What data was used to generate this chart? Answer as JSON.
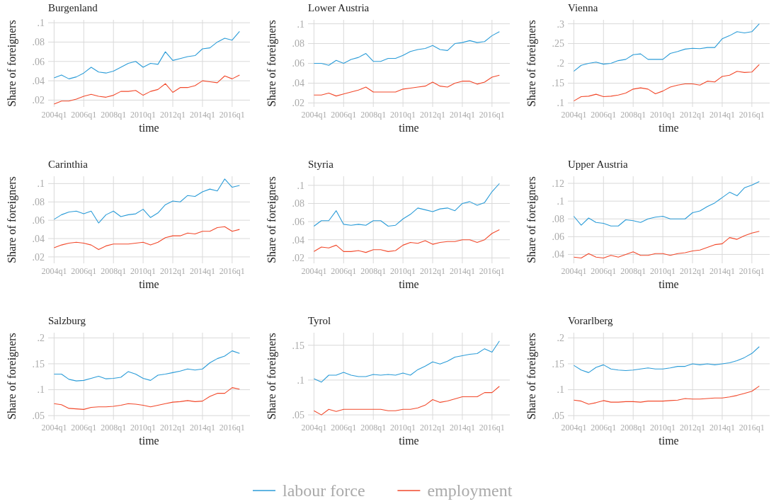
{
  "chart_data": [
    {
      "type": "line",
      "title": "Burgenland",
      "xlabel": "time",
      "ylabel": "Share of foreigners",
      "grid": true,
      "legend": "bottom",
      "ylim": [
        0.013,
        0.103
      ],
      "categories": [
        "2004q1",
        null,
        null,
        null,
        "2006q1",
        null,
        null,
        null,
        "2008q1",
        null,
        null,
        null,
        "2010q1",
        null,
        null,
        null,
        "2012q1",
        null,
        null,
        null,
        "2014q1",
        null,
        null,
        null,
        "2016q1",
        null
      ],
      "yticks": [
        {
          "value": 0.02,
          "label": ".02"
        },
        {
          "value": 0.04,
          "label": ".04"
        },
        {
          "value": 0.06,
          "label": ".06"
        },
        {
          "value": 0.08,
          "label": ".08"
        },
        {
          "value": 0.1,
          "label": ".1"
        }
      ],
      "series": [
        {
          "name": "labour force",
          "color": "#2b9cd8",
          "values": [
            0.043,
            0.046,
            0.042,
            0.044,
            0.048,
            0.054,
            0.049,
            0.048,
            0.05,
            0.054,
            0.058,
            0.06,
            0.054,
            0.058,
            0.057,
            0.07,
            0.061,
            0.063,
            0.065,
            0.066,
            0.073,
            0.074,
            0.08,
            0.084,
            0.082,
            0.091
          ]
        },
        {
          "name": "employment",
          "color": "#f2492b",
          "values": [
            0.016,
            0.019,
            0.019,
            0.021,
            0.024,
            0.026,
            0.024,
            0.023,
            0.025,
            0.029,
            0.029,
            0.03,
            0.025,
            0.029,
            0.031,
            0.037,
            0.028,
            0.033,
            0.033,
            0.035,
            0.04,
            0.039,
            0.038,
            0.045,
            0.042,
            0.046
          ]
        }
      ]
    },
    {
      "type": "line",
      "title": "Lower Austria",
      "xlabel": "time",
      "ylabel": "Share of foreigners",
      "grid": true,
      "legend": "bottom",
      "ylim": [
        0.016,
        0.104
      ],
      "categories": [
        "2004q1",
        null,
        null,
        null,
        "2006q1",
        null,
        null,
        null,
        "2008q1",
        null,
        null,
        null,
        "2010q1",
        null,
        null,
        null,
        "2012q1",
        null,
        null,
        null,
        "2014q1",
        null,
        null,
        null,
        "2016q1",
        null
      ],
      "yticks": [
        {
          "value": 0.02,
          "label": ".02"
        },
        {
          "value": 0.04,
          "label": ".04"
        },
        {
          "value": 0.06,
          "label": ".06"
        },
        {
          "value": 0.08,
          "label": ".08"
        },
        {
          "value": 0.1,
          "label": ".1"
        }
      ],
      "series": [
        {
          "color": "#2b9cd8",
          "values": [
            0.06,
            0.06,
            0.058,
            0.063,
            0.06,
            0.064,
            0.066,
            0.07,
            0.062,
            0.062,
            0.065,
            0.065,
            0.068,
            0.072,
            0.074,
            0.075,
            0.078,
            0.074,
            0.073,
            0.08,
            0.081,
            0.083,
            0.081,
            0.082,
            0.088,
            0.092
          ]
        },
        {
          "color": "#f2492b",
          "values": [
            0.028,
            0.028,
            0.03,
            0.027,
            0.029,
            0.031,
            0.033,
            0.036,
            0.031,
            0.031,
            0.031,
            0.031,
            0.034,
            0.035,
            0.036,
            0.037,
            0.041,
            0.037,
            0.036,
            0.04,
            0.042,
            0.042,
            0.039,
            0.041,
            0.046,
            0.048
          ]
        }
      ]
    },
    {
      "type": "line",
      "title": "Vienna",
      "xlabel": "time",
      "ylabel": "Share of foreigners",
      "grid": true,
      "legend": "bottom",
      "ylim": [
        0.09,
        0.31
      ],
      "categories": [
        "2004q1",
        null,
        null,
        null,
        "2006q1",
        null,
        null,
        null,
        "2008q1",
        null,
        null,
        null,
        "2010q1",
        null,
        null,
        null,
        "2012q1",
        null,
        null,
        null,
        "2014q1",
        null,
        null,
        null,
        "2016q1",
        null
      ],
      "yticks": [
        {
          "value": 0.1,
          "label": ".1"
        },
        {
          "value": 0.15,
          "label": ".15"
        },
        {
          "value": 0.2,
          "label": ".2"
        },
        {
          "value": 0.25,
          "label": ".25"
        },
        {
          "value": 0.3,
          "label": ".3"
        }
      ],
      "series": [
        {
          "color": "#2b9cd8",
          "values": [
            0.18,
            0.195,
            0.2,
            0.203,
            0.198,
            0.2,
            0.207,
            0.21,
            0.222,
            0.224,
            0.21,
            0.21,
            0.21,
            0.225,
            0.23,
            0.236,
            0.238,
            0.237,
            0.24,
            0.24,
            0.262,
            0.27,
            0.28,
            0.277,
            0.28,
            0.3
          ]
        },
        {
          "color": "#f2492b",
          "values": [
            0.105,
            0.116,
            0.117,
            0.122,
            0.116,
            0.117,
            0.12,
            0.125,
            0.135,
            0.138,
            0.135,
            0.123,
            0.13,
            0.14,
            0.145,
            0.148,
            0.148,
            0.145,
            0.155,
            0.153,
            0.167,
            0.17,
            0.18,
            0.177,
            0.178,
            0.197
          ]
        }
      ]
    },
    {
      "type": "line",
      "title": "Carinthia",
      "xlabel": "time",
      "ylabel": "Share of foreigners",
      "grid": true,
      "legend": "bottom",
      "ylim": [
        0.013,
        0.108
      ],
      "categories": [
        "2004q1",
        null,
        null,
        null,
        "2006q1",
        null,
        null,
        null,
        "2008q1",
        null,
        null,
        null,
        "2010q1",
        null,
        null,
        null,
        "2012q1",
        null,
        null,
        null,
        "2014q1",
        null,
        null,
        null,
        "2016q1",
        null
      ],
      "yticks": [
        {
          "value": 0.02,
          "label": ".02"
        },
        {
          "value": 0.04,
          "label": ".04"
        },
        {
          "value": 0.06,
          "label": ".06"
        },
        {
          "value": 0.08,
          "label": ".08"
        },
        {
          "value": 0.1,
          "label": ".1"
        }
      ],
      "series": [
        {
          "color": "#2b9cd8",
          "values": [
            0.061,
            0.066,
            0.069,
            0.07,
            0.067,
            0.07,
            0.057,
            0.066,
            0.07,
            0.064,
            0.066,
            0.067,
            0.072,
            0.063,
            0.068,
            0.077,
            0.081,
            0.08,
            0.087,
            0.086,
            0.091,
            0.094,
            0.092,
            0.105,
            0.096,
            0.098
          ]
        },
        {
          "color": "#f2492b",
          "values": [
            0.03,
            0.033,
            0.035,
            0.036,
            0.035,
            0.033,
            0.028,
            0.032,
            0.034,
            0.034,
            0.034,
            0.035,
            0.036,
            0.033,
            0.036,
            0.041,
            0.043,
            0.043,
            0.046,
            0.045,
            0.048,
            0.048,
            0.052,
            0.053,
            0.048,
            0.05
          ]
        }
      ]
    },
    {
      "type": "line",
      "title": "Styria",
      "xlabel": "time",
      "ylabel": "Share of foreigners",
      "grid": true,
      "legend": "bottom",
      "ylim": [
        0.014,
        0.11
      ],
      "categories": [
        "2004q1",
        null,
        null,
        null,
        "2006q1",
        null,
        null,
        null,
        "2008q1",
        null,
        null,
        null,
        "2010q1",
        null,
        null,
        null,
        "2012q1",
        null,
        null,
        null,
        "2014q1",
        null,
        null,
        null,
        "2016q1",
        null
      ],
      "yticks": [
        {
          "value": 0.02,
          "label": ".02"
        },
        {
          "value": 0.04,
          "label": ".04"
        },
        {
          "value": 0.06,
          "label": ".06"
        },
        {
          "value": 0.08,
          "label": ".08"
        },
        {
          "value": 0.1,
          "label": ".1"
        }
      ],
      "series": [
        {
          "color": "#2b9cd8",
          "values": [
            0.055,
            0.061,
            0.061,
            0.072,
            0.057,
            0.056,
            0.057,
            0.056,
            0.061,
            0.061,
            0.055,
            0.056,
            0.063,
            0.068,
            0.075,
            0.073,
            0.071,
            0.074,
            0.075,
            0.072,
            0.08,
            0.082,
            0.078,
            0.081,
            0.093,
            0.102
          ]
        },
        {
          "color": "#f2492b",
          "values": [
            0.027,
            0.032,
            0.031,
            0.034,
            0.027,
            0.027,
            0.028,
            0.026,
            0.029,
            0.029,
            0.027,
            0.028,
            0.034,
            0.037,
            0.036,
            0.039,
            0.035,
            0.037,
            0.038,
            0.038,
            0.04,
            0.04,
            0.037,
            0.04,
            0.047,
            0.051
          ]
        }
      ]
    },
    {
      "type": "line",
      "title": "Upper Austria",
      "xlabel": "time",
      "ylabel": "Share of foreigners",
      "grid": true,
      "legend": "bottom",
      "ylim": [
        0.03,
        0.128
      ],
      "categories": [
        "2004q1",
        null,
        null,
        null,
        "2006q1",
        null,
        null,
        null,
        "2008q1",
        null,
        null,
        null,
        "2010q1",
        null,
        null,
        null,
        "2012q1",
        null,
        null,
        null,
        "2014q1",
        null,
        null,
        null,
        "2016q1",
        null
      ],
      "yticks": [
        {
          "value": 0.04,
          "label": ".04"
        },
        {
          "value": 0.06,
          "label": ".06"
        },
        {
          "value": 0.08,
          "label": ".08"
        },
        {
          "value": 0.1,
          "label": ".1"
        },
        {
          "value": 0.12,
          "label": ".12"
        }
      ],
      "series": [
        {
          "color": "#2b9cd8",
          "values": [
            0.083,
            0.073,
            0.081,
            0.076,
            0.075,
            0.072,
            0.072,
            0.079,
            0.078,
            0.076,
            0.08,
            0.082,
            0.083,
            0.08,
            0.08,
            0.08,
            0.087,
            0.089,
            0.094,
            0.098,
            0.104,
            0.11,
            0.106,
            0.115,
            0.118,
            0.122
          ]
        },
        {
          "color": "#f2492b",
          "values": [
            0.037,
            0.036,
            0.041,
            0.037,
            0.036,
            0.039,
            0.037,
            0.04,
            0.043,
            0.039,
            0.039,
            0.041,
            0.041,
            0.039,
            0.041,
            0.042,
            0.044,
            0.045,
            0.048,
            0.051,
            0.052,
            0.059,
            0.057,
            0.061,
            0.064,
            0.066
          ]
        }
      ]
    },
    {
      "type": "line",
      "title": "Salzburg",
      "xlabel": "time",
      "ylabel": "Share of foreigners",
      "grid": true,
      "legend": "bottom",
      "ylim": [
        0.042,
        0.21
      ],
      "categories": [
        "2004q1",
        null,
        null,
        null,
        "2006q1",
        null,
        null,
        null,
        "2008q1",
        null,
        null,
        null,
        "2010q1",
        null,
        null,
        null,
        "2012q1",
        null,
        null,
        null,
        "2014q1",
        null,
        null,
        null,
        "2016q1",
        null
      ],
      "yticks": [
        {
          "value": 0.05,
          "label": ".05"
        },
        {
          "value": 0.1,
          "label": ".1"
        },
        {
          "value": 0.15,
          "label": ".15"
        },
        {
          "value": 0.2,
          "label": ".2"
        }
      ],
      "series": [
        {
          "color": "#2b9cd8",
          "values": [
            0.13,
            0.13,
            0.12,
            0.117,
            0.118,
            0.122,
            0.126,
            0.121,
            0.122,
            0.124,
            0.135,
            0.13,
            0.122,
            0.118,
            0.128,
            0.13,
            0.133,
            0.136,
            0.14,
            0.138,
            0.14,
            0.152,
            0.16,
            0.165,
            0.175,
            0.17
          ]
        },
        {
          "color": "#f2492b",
          "values": [
            0.073,
            0.071,
            0.064,
            0.063,
            0.062,
            0.066,
            0.067,
            0.067,
            0.068,
            0.07,
            0.073,
            0.072,
            0.07,
            0.067,
            0.07,
            0.073,
            0.076,
            0.077,
            0.079,
            0.077,
            0.078,
            0.087,
            0.093,
            0.093,
            0.104,
            0.101
          ]
        }
      ]
    },
    {
      "type": "line",
      "title": "Tyrol",
      "xlabel": "time",
      "ylabel": "Share of foreigners",
      "grid": true,
      "legend": "bottom",
      "ylim": [
        0.043,
        0.168
      ],
      "categories": [
        "2004q1",
        null,
        null,
        null,
        "2006q1",
        null,
        null,
        null,
        "2008q1",
        null,
        null,
        null,
        "2010q1",
        null,
        null,
        null,
        "2012q1",
        null,
        null,
        null,
        "2014q1",
        null,
        null,
        null,
        "2016q1",
        null
      ],
      "yticks": [
        {
          "value": 0.05,
          "label": ".05"
        },
        {
          "value": 0.1,
          "label": ".1"
        },
        {
          "value": 0.15,
          "label": ".15"
        }
      ],
      "series": [
        {
          "color": "#2b9cd8",
          "values": [
            0.102,
            0.097,
            0.107,
            0.107,
            0.111,
            0.107,
            0.105,
            0.105,
            0.108,
            0.107,
            0.108,
            0.107,
            0.11,
            0.107,
            0.115,
            0.12,
            0.126,
            0.123,
            0.127,
            0.133,
            0.135,
            0.137,
            0.138,
            0.145,
            0.14,
            0.156
          ]
        },
        {
          "color": "#f2492b",
          "values": [
            0.056,
            0.05,
            0.058,
            0.055,
            0.058,
            0.058,
            0.058,
            0.058,
            0.058,
            0.058,
            0.056,
            0.056,
            0.058,
            0.058,
            0.06,
            0.064,
            0.072,
            0.068,
            0.07,
            0.073,
            0.076,
            0.076,
            0.076,
            0.082,
            0.082,
            0.091
          ]
        }
      ]
    },
    {
      "type": "line",
      "title": "Vorarlberg",
      "xlabel": "time",
      "ylabel": "Share of foreigners",
      "grid": true,
      "legend": "bottom",
      "ylim": [
        0.042,
        0.21
      ],
      "categories": [
        "2004q1",
        null,
        null,
        null,
        "2006q1",
        null,
        null,
        null,
        "2008q1",
        null,
        null,
        null,
        "2010q1",
        null,
        null,
        null,
        "2012q1",
        null,
        null,
        null,
        "2014q1",
        null,
        null,
        null,
        "2016q1",
        null
      ],
      "yticks": [
        {
          "value": 0.05,
          "label": ".05"
        },
        {
          "value": 0.1,
          "label": ".1"
        },
        {
          "value": 0.15,
          "label": ".15"
        },
        {
          "value": 0.2,
          "label": ".2"
        }
      ],
      "series": [
        {
          "color": "#2b9cd8",
          "values": [
            0.147,
            0.138,
            0.133,
            0.143,
            0.148,
            0.14,
            0.138,
            0.137,
            0.138,
            0.14,
            0.142,
            0.14,
            0.14,
            0.142,
            0.145,
            0.145,
            0.15,
            0.148,
            0.15,
            0.148,
            0.15,
            0.152,
            0.156,
            0.162,
            0.17,
            0.183
          ]
        },
        {
          "color": "#f2492b",
          "values": [
            0.08,
            0.078,
            0.072,
            0.075,
            0.079,
            0.076,
            0.076,
            0.077,
            0.077,
            0.076,
            0.078,
            0.078,
            0.078,
            0.079,
            0.08,
            0.083,
            0.082,
            0.082,
            0.083,
            0.084,
            0.084,
            0.086,
            0.089,
            0.093,
            0.097,
            0.107
          ]
        }
      ]
    }
  ]
}
